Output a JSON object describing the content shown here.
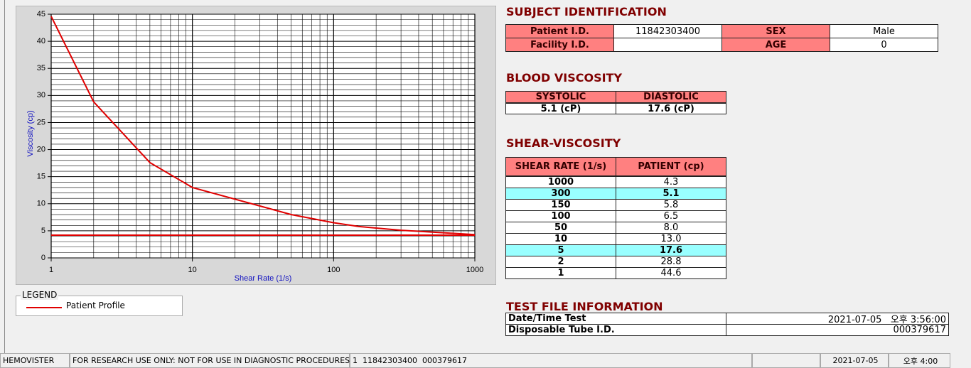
{
  "chart_data": {
    "type": "line",
    "xlabel": "Shear Rate (1/s)",
    "ylabel": "Viscosity (cp)",
    "x": [
      1,
      2,
      5,
      10,
      50,
      100,
      150,
      300,
      1000
    ],
    "series": [
      {
        "name": "Patient Profile",
        "color": "#e00000",
        "values": [
          44.6,
          28.8,
          17.6,
          13.0,
          8.0,
          6.5,
          5.8,
          5.1,
          4.3
        ]
      },
      {
        "color": "#e00000",
        "values": [
          4.2,
          4.2,
          4.2,
          4.2,
          4.2,
          4.2,
          4.2,
          4.2,
          4.2
        ]
      }
    ],
    "xscale": "log",
    "xlim": [
      1,
      1000
    ],
    "xticks": [
      1,
      10,
      100,
      1000
    ],
    "ylim": [
      0,
      45
    ],
    "yticks": [
      0,
      5,
      10,
      15,
      20,
      25,
      30,
      35,
      40,
      45
    ],
    "grid": true,
    "legend_title": "LEGEND"
  },
  "subject": {
    "title": "SUBJECT IDENTIFICATION",
    "rows": [
      [
        "Patient I.D.",
        "11842303400",
        "SEX",
        "Male"
      ],
      [
        "Facility I.D.",
        null,
        "AGE",
        "0"
      ]
    ]
  },
  "blood_viscosity": {
    "title": "BLOOD VISCOSITY",
    "headers": [
      "SYSTOLIC",
      "DIASTOLIC"
    ],
    "values": [
      "5.1 (cP)",
      "17.6 (cP)"
    ]
  },
  "shear_viscosity": {
    "title": "SHEAR-VISCOSITY",
    "headers": [
      "SHEAR RATE (1/s)",
      "PATIENT (cp)"
    ],
    "rows": [
      [
        "1000",
        "4.3"
      ],
      [
        "300",
        "5.1"
      ],
      [
        "150",
        "5.8"
      ],
      [
        "100",
        "6.5"
      ],
      [
        "50",
        "8.0"
      ],
      [
        "10",
        "13.0"
      ],
      [
        "5",
        "17.6"
      ],
      [
        "2",
        "28.8"
      ],
      [
        "1",
        "44.6"
      ]
    ],
    "highlight_rows": [
      1,
      6
    ],
    "highlight_color": "#99ffff"
  },
  "test_file": {
    "title": "TEST FILE INFORMATION",
    "rows": [
      [
        "Date/Time Test",
        "2021-07-05   오후 3:56:00"
      ],
      [
        "Disposable Tube I.D.",
        "000379617"
      ]
    ]
  },
  "status_bar": [
    "HEMOVISTER",
    "FOR RESEARCH USE ONLY: NOT FOR USE IN DIAGNOSTIC PROCEDURES",
    "1  11842303400  000379617",
    null,
    "2021-07-05",
    "오후 4:00"
  ]
}
